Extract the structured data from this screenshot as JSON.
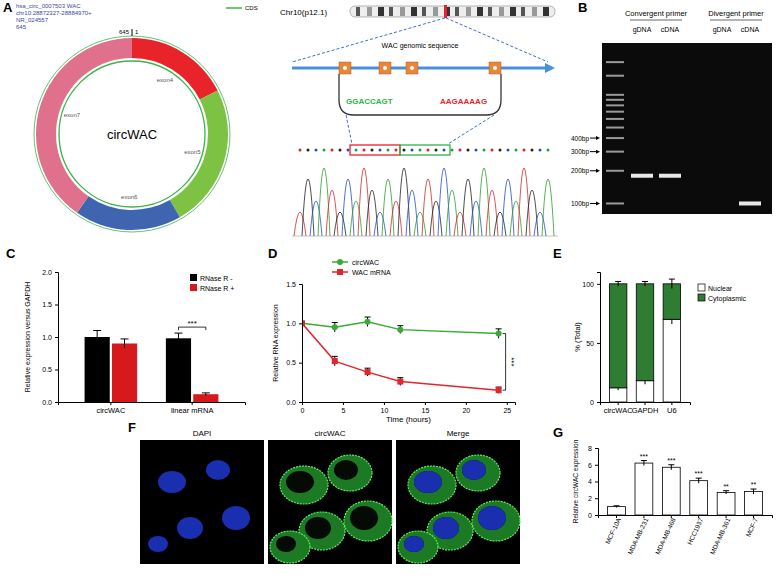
{
  "chart_data": [
    {
      "panel": "A",
      "type": "circRNA diagram",
      "header": [
        "hsa_circ_0007503  WAC",
        "chr10:28872327-28884970+",
        "NR_024557",
        "645"
      ],
      "start": 1,
      "end": 645,
      "center_label": "circWAC",
      "cds": {
        "label": "CDS",
        "color": "#3cb44b"
      },
      "exons": [
        {
          "name": "exon4",
          "color": "#e8232a",
          "length": 113
        },
        {
          "name": "exon5",
          "color": "#7dc242",
          "length": 156
        },
        {
          "name": "exon6",
          "color": "#3f64b0",
          "length": 116
        },
        {
          "name": "exon7",
          "color": "#e0718c",
          "length": 260
        }
      ],
      "chromosome": "Chr10(p12.1)",
      "gene_label": "WAC genomic sequence",
      "junction": [
        "GGACCAGT",
        "AAGAAAAG"
      ]
    },
    {
      "panel": "B",
      "type": "gel",
      "groups": [
        {
          "label": "Convergent primer",
          "lanes": [
            "gDNA",
            "cDNA"
          ],
          "bands": [
            180,
            180
          ]
        },
        {
          "label": "Divergent primer",
          "lanes": [
            "gDNA",
            "cDNA"
          ],
          "bands": [
            null,
            100
          ]
        }
      ],
      "ladder": [
        100,
        200,
        300,
        400,
        500,
        600,
        700,
        800,
        900,
        1000,
        1500,
        2000
      ],
      "log": true,
      "ylim": [
        80,
        3000
      ],
      "yticks": [
        {
          "value": 400,
          "label": "400bp"
        },
        {
          "value": 300,
          "label": "300bp"
        },
        {
          "value": 200,
          "label": "200bp"
        },
        {
          "value": 100,
          "label": "100bp"
        }
      ]
    },
    {
      "panel": "C",
      "type": "bar",
      "categories": [
        "circWAC",
        "linear mRNA"
      ],
      "series": [
        {
          "name": "RNase R -",
          "color": "#000000",
          "values": [
            1.0,
            0.98
          ],
          "errors": [
            0.1,
            0.08
          ]
        },
        {
          "name": "RNase R +",
          "color": "#d7191c",
          "values": [
            0.9,
            0.12
          ],
          "errors": [
            0.07,
            0.02
          ]
        }
      ],
      "y_label": "Relative expression versus GAPDH",
      "ylim": [
        0,
        2
      ],
      "yticks": [
        {
          "value": 0,
          "label": "0.0"
        },
        {
          "value": 0.5,
          "label": "0.5"
        },
        {
          "value": 1,
          "label": "1.0"
        },
        {
          "value": 1.5,
          "label": "1.5"
        },
        {
          "value": 2,
          "label": "2.0"
        }
      ],
      "legend": "upper right",
      "annotations": [
        {
          "category": "linear mRNA",
          "text": "***"
        }
      ]
    },
    {
      "panel": "D",
      "type": "line",
      "x": [
        0,
        4,
        8,
        12,
        24
      ],
      "series": [
        {
          "name": "circWAC",
          "color": "#3aa935",
          "marker": "circle",
          "values": [
            1.0,
            0.95,
            1.02,
            0.92,
            0.87
          ],
          "errors": [
            0,
            0.06,
            0.06,
            0.05,
            0.06
          ]
        },
        {
          "name": "WAC mRNA",
          "color": "#e3262b",
          "marker": "square",
          "values": [
            1.0,
            0.52,
            0.38,
            0.26,
            0.15
          ],
          "errors": [
            0,
            0.06,
            0.05,
            0.05,
            0.04
          ]
        }
      ],
      "x_label": "Time (hours)",
      "y_label": "Relative RNA expression",
      "xlim": [
        0,
        26
      ],
      "xticks": [
        0,
        5,
        10,
        15,
        20,
        25
      ],
      "ylim": [
        0,
        1.5
      ],
      "yticks": [
        {
          "value": 0,
          "label": "0.0"
        },
        {
          "value": 0.5,
          "label": "0.5"
        },
        {
          "value": 1,
          "label": "1.0"
        },
        {
          "value": 1.5,
          "label": "1.5"
        }
      ],
      "legend": "top",
      "annotations": [
        {
          "x": 24,
          "text": "***"
        }
      ]
    },
    {
      "panel": "E",
      "type": "bar",
      "stacked": true,
      "categories": [
        "circWAC",
        "GAPDH",
        "U6"
      ],
      "series": [
        {
          "name": "Nuclear",
          "color": "#ffffff",
          "values": [
            12,
            18,
            70
          ],
          "errors": [
            2,
            3,
            4
          ]
        },
        {
          "name": "Cytoplasmic",
          "color": "#2e7d32",
          "values": [
            88,
            82,
            30
          ],
          "errors": [
            2,
            2,
            4
          ]
        }
      ],
      "y_label": "% (Total)",
      "ylim": [
        0,
        110
      ],
      "yticks": [
        0,
        50,
        100
      ],
      "legend": "right"
    },
    {
      "panel": "F",
      "type": "image panels",
      "panels": [
        "DAPI",
        "circWAC",
        "Merge"
      ]
    },
    {
      "panel": "G",
      "type": "bar",
      "categories": [
        "MCF-10A",
        "MDA-MB-231",
        "MDA-MB-468",
        "HCC1937",
        "MDA-MB-361",
        "MCF-7"
      ],
      "values": [
        1.0,
        6.2,
        5.7,
        4.1,
        2.7,
        2.8
      ],
      "errors": [
        0.1,
        0.3,
        0.3,
        0.3,
        0.2,
        0.3
      ],
      "color": "#ffffff",
      "significance": [
        null,
        "***",
        "***",
        "***",
        "**",
        "**"
      ],
      "y_label": "Relative circWAC expression",
      "ylim": [
        0,
        8
      ],
      "yticks": [
        0,
        2,
        4,
        6,
        8
      ]
    }
  ]
}
